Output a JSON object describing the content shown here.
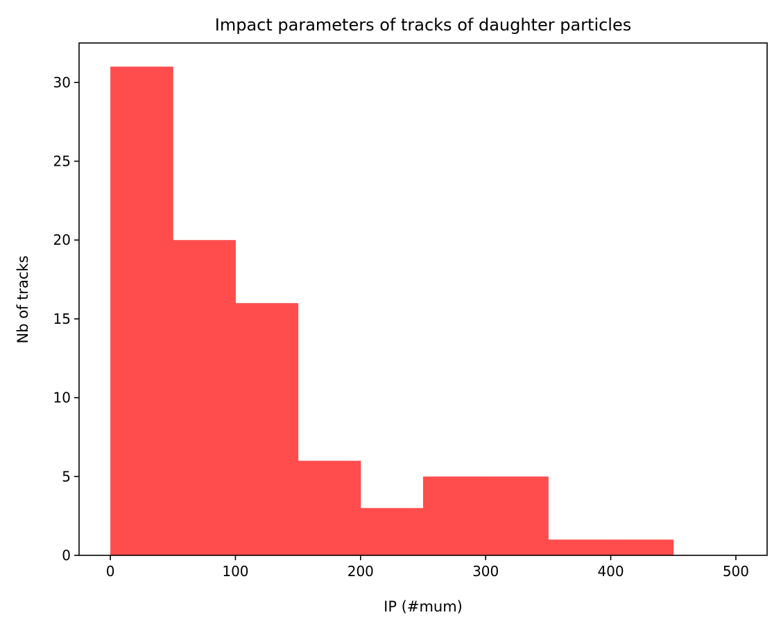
{
  "chart_data": {
    "type": "bar",
    "subtype": "histogram",
    "title": "Impact parameters of tracks of daughter particles",
    "xlabel": "IP (#mum)",
    "ylabel": "Nb of tracks",
    "bin_edges": [
      0,
      50,
      100,
      150,
      200,
      250,
      300,
      350,
      400,
      450,
      500
    ],
    "values": [
      31,
      20,
      16,
      6,
      3,
      5,
      5,
      1,
      1,
      0
    ],
    "xlim": [
      -25,
      525
    ],
    "ylim": [
      0,
      32.5
    ],
    "xticks": [
      0,
      100,
      200,
      300,
      400,
      500
    ],
    "yticks": [
      0,
      5,
      10,
      15,
      20,
      25,
      30
    ],
    "bar_color": "#ff4d4d",
    "grid": false,
    "legend": false
  }
}
